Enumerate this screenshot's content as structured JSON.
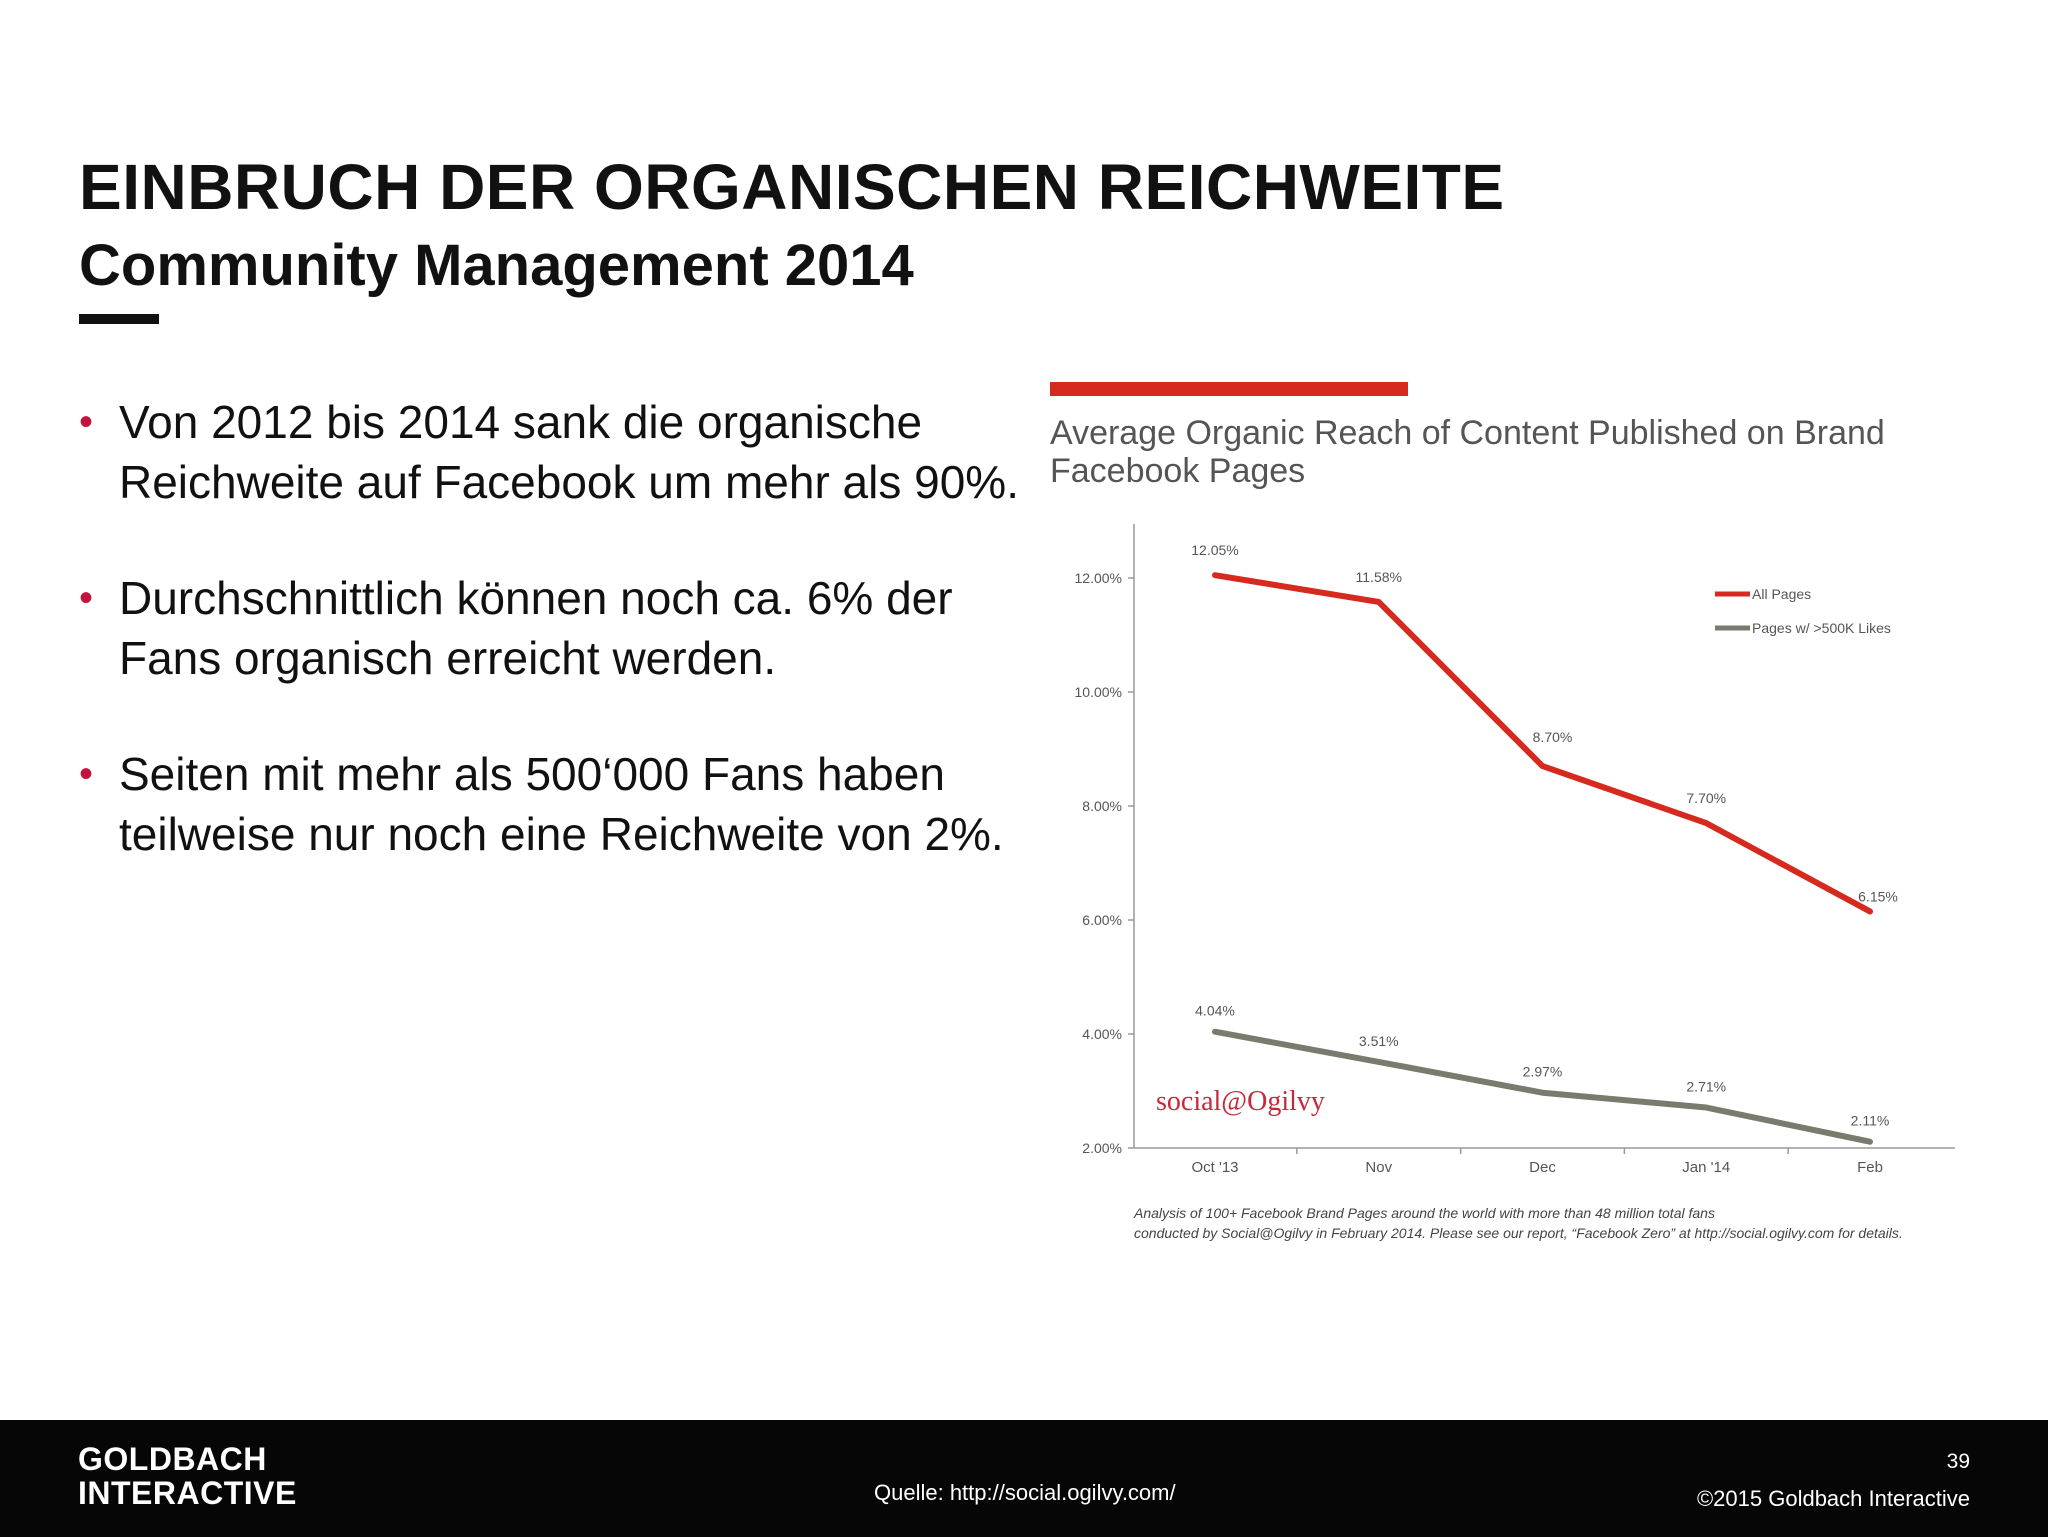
{
  "slide": {
    "title": "EINBRUCH DER ORGANISCHEN REICHWEITE",
    "subtitle": "Community Management 2014",
    "bullets": [
      "Von 2012 bis 2014 sank die organische Reichweite auf Facebook um mehr als 90%.",
      "Durchschnittlich können noch ca. 6% der Fans organisch erreicht werden.",
      "Seiten mit mehr als 500‘000 Fans haben teilweise nur noch eine Reichweite von 2%."
    ]
  },
  "chart_data": {
    "type": "line",
    "title": "Average Organic Reach of Content Published on Brand Facebook Pages",
    "categories": [
      "Oct '13",
      "Nov",
      "Dec",
      "Jan '14",
      "Feb"
    ],
    "series": [
      {
        "name": "All Pages",
        "color": "#d62a1f",
        "values": [
          12.05,
          11.58,
          8.7,
          7.7,
          6.15
        ],
        "labels": [
          "12.05%",
          "11.58%",
          "8.70%",
          "7.70%",
          "6.15%"
        ]
      },
      {
        "name": "Pages w/ >500K Likes",
        "color": "#7a7a6e",
        "values": [
          4.04,
          3.51,
          2.97,
          2.71,
          2.11
        ],
        "labels": [
          "4.04%",
          "3.51%",
          "2.97%",
          "2.71%",
          "2.11%"
        ]
      }
    ],
    "ylim": [
      2,
      12
    ],
    "yticks": [
      "2.00%",
      "4.00%",
      "6.00%",
      "8.00%",
      "10.00%",
      "12.00%"
    ],
    "xlabel": "",
    "ylabel": "",
    "grid": false,
    "legend": "top-right",
    "watermark": "social@Ogilvy",
    "note": "Analysis of 100+ Facebook Brand Pages around the world with more than 48 million total fans conducted by Social@Ogilvy in February 2014. Please see our report, “Facebook Zero” at http://social.ogilvy.com for details."
  },
  "footer": {
    "logo_line1": "GOLDBACH",
    "logo_line2": "INTERACTIVE",
    "source": "Quelle: http://social.ogilvy.com/",
    "page_number": "39",
    "copyright": "©2015 Goldbach Interactive"
  }
}
